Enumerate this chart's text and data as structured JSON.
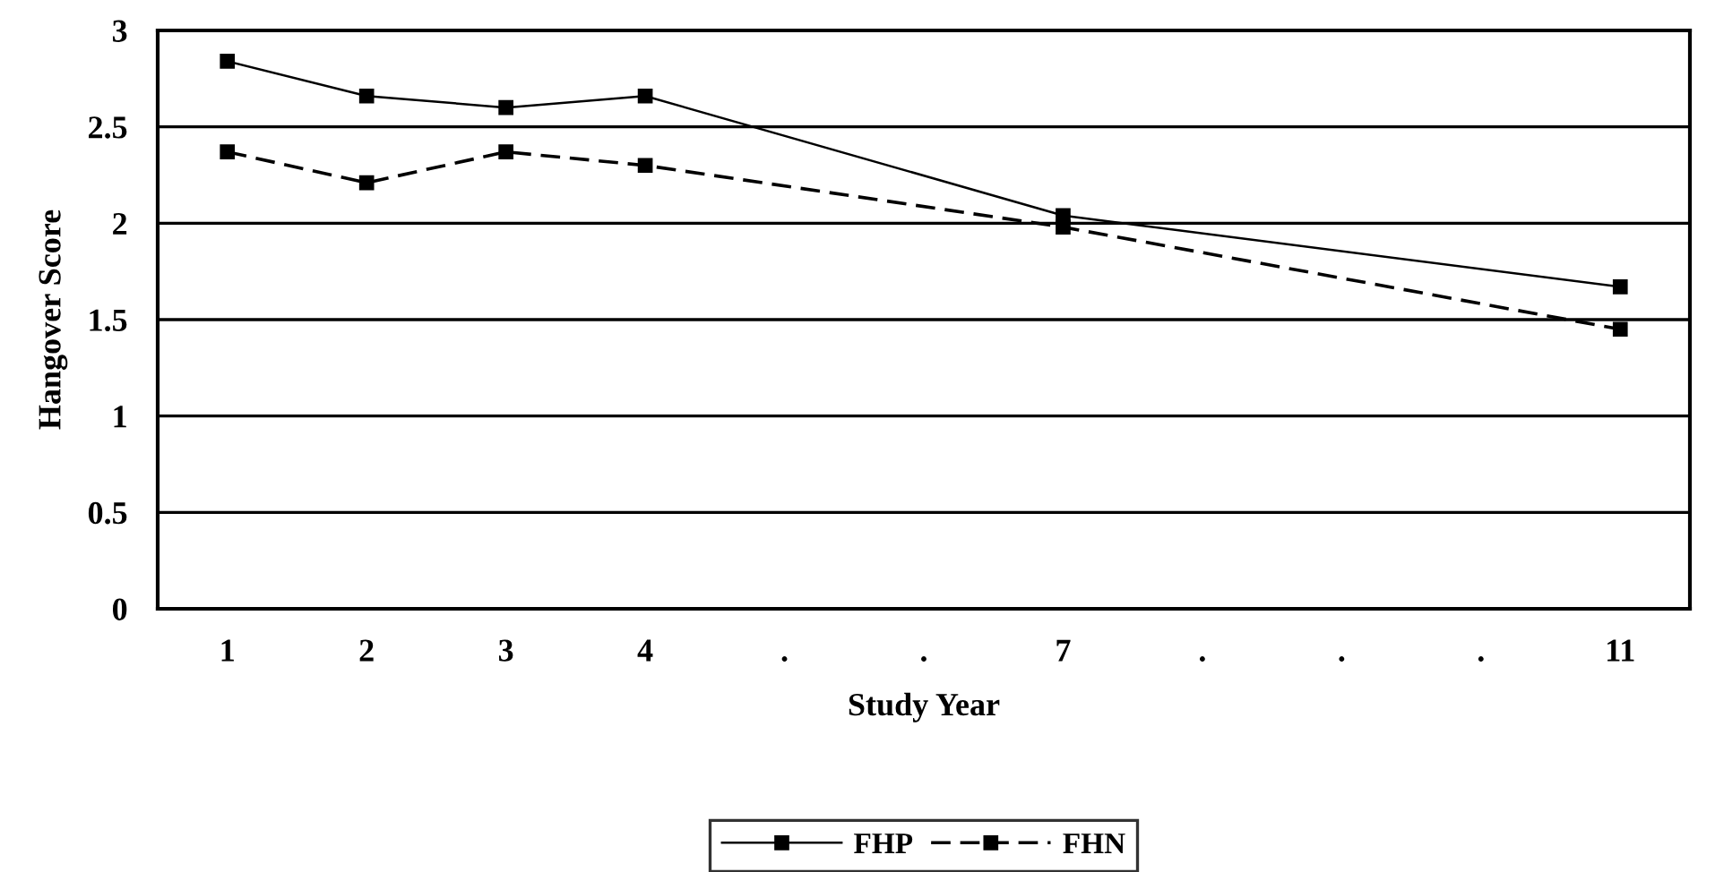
{
  "chart_data": {
    "type": "line",
    "xlabel": "Study Year",
    "ylabel": "Hangover Score",
    "categories": [
      "1",
      "2",
      "3",
      "4",
      ".",
      ".",
      "7",
      ".",
      ".",
      ".",
      "11"
    ],
    "series": [
      {
        "name": "FHP",
        "color": "#000000",
        "line_style": "solid",
        "values": [
          2.84,
          2.66,
          2.6,
          2.66,
          null,
          null,
          2.04,
          null,
          null,
          null,
          1.67
        ]
      },
      {
        "name": "FHN",
        "color": "#000000",
        "line_style": "dashed",
        "values": [
          2.37,
          2.21,
          2.37,
          2.3,
          null,
          null,
          1.98,
          null,
          null,
          null,
          1.45
        ]
      }
    ],
    "ylim": [
      0,
      3
    ],
    "yticks": [
      0,
      0.5,
      1,
      1.5,
      2,
      2.5,
      3
    ],
    "grid": "y",
    "legend": "bottom",
    "marker": "square"
  }
}
